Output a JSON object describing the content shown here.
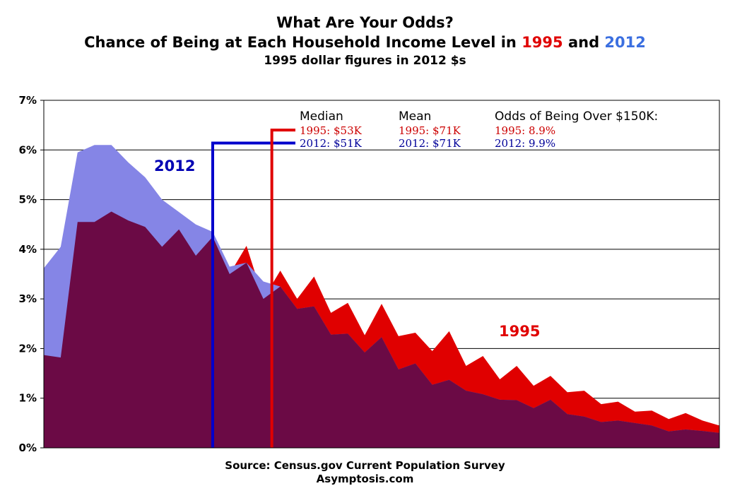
{
  "title": {
    "line1": "What Are Your Odds?",
    "line2_prefix": "Chance of Being at Each Household Income Level in ",
    "line2_year1": "1995",
    "line2_mid": " and ",
    "line2_year2": "2012",
    "line3": "1995 dollar figures in 2012 $s"
  },
  "colors": {
    "s1995": "#e00000",
    "s2012": "#8585e6",
    "overlap": "#6b0a45",
    "line2012": "#0000cc",
    "line1995": "#e00000",
    "text1995": "#cc0000",
    "text2012": "#000099"
  },
  "stats": {
    "median_header": "Median",
    "mean_header": "Mean",
    "odds_header": "Odds of Being Over $150K:",
    "median_1995": "1995: $53K",
    "median_2012": "2012: $51K",
    "mean_1995": "1995: $71K",
    "mean_2012": "2012: $71K",
    "odds_1995": "1995: 8.9%",
    "odds_2012": "2012: 9.9%"
  },
  "source": {
    "line1": "Source: Census.gov Current Population Survey",
    "line2": "Asymptosis.com"
  },
  "chart_data": {
    "type": "area",
    "ylim": [
      0,
      7
    ],
    "y_ticks": [
      "0%",
      "1%",
      "2%",
      "3%",
      "4%",
      "5%",
      "6%",
      "7%"
    ],
    "grid": true,
    "x_count": 41,
    "median_index": {
      "s2012": 10,
      "s1995": 13.5
    },
    "series": [
      {
        "name": "1995",
        "values": [
          1.87,
          1.82,
          4.55,
          4.55,
          4.76,
          4.58,
          4.45,
          4.05,
          4.4,
          3.87,
          4.25,
          3.5,
          4.07,
          3.0,
          3.57,
          3.0,
          3.45,
          2.72,
          2.92,
          2.27,
          2.9,
          2.25,
          2.32,
          1.95,
          2.35,
          1.65,
          1.85,
          1.38,
          1.65,
          1.25,
          1.45,
          1.12,
          1.15,
          0.88,
          0.93,
          0.73,
          0.75,
          0.58,
          0.7,
          0.55,
          0.45
        ]
      },
      {
        "name": "2012",
        "values": [
          3.62,
          4.05,
          5.95,
          6.1,
          6.1,
          5.75,
          5.45,
          5.0,
          4.75,
          4.5,
          4.35,
          3.65,
          3.73,
          3.35,
          3.25,
          2.8,
          2.85,
          2.28,
          2.3,
          1.92,
          2.23,
          1.58,
          1.7,
          1.27,
          1.37,
          1.15,
          1.08,
          0.97,
          0.96,
          0.8,
          0.97,
          0.68,
          0.63,
          0.52,
          0.55,
          0.5,
          0.45,
          0.33,
          0.37,
          0.34,
          0.3
        ]
      }
    ]
  }
}
